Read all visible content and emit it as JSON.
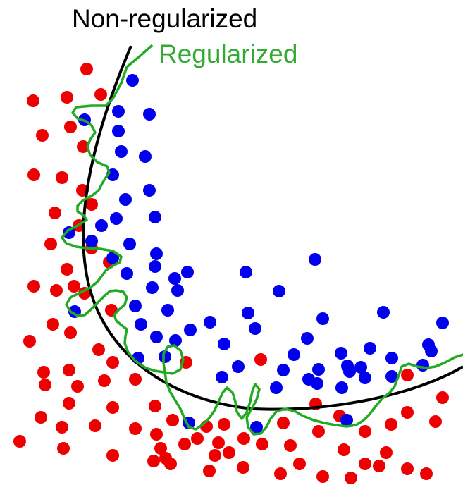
{
  "labels": {
    "non_regularized": "Non-regularized",
    "regularized": "Regularized"
  },
  "colors": {
    "class_a_points": "#ee0000",
    "class_b_points": "#0000ee",
    "non_regularized_boundary": "#000000",
    "regularized_boundary": "#22aa22",
    "non_regularized_text": "#000000",
    "regularized_text": "#33aa33"
  }
}
